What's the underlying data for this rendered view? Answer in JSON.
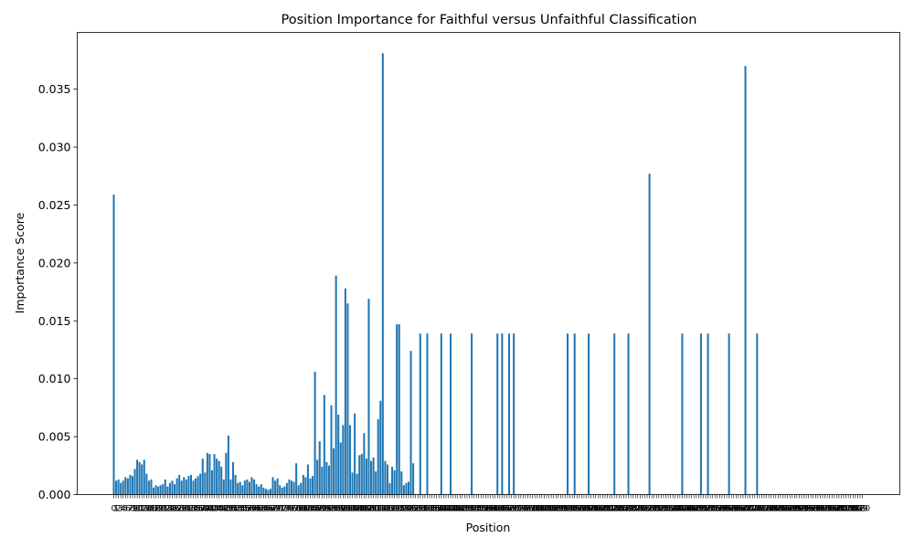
{
  "chart_data": {
    "type": "bar",
    "title": "Position Importance for Faithful versus Unfaithful Classification",
    "xlabel": "Position",
    "ylabel": "Importance Score",
    "ylim": [
      0,
      0.0399
    ],
    "yticks": [
      0.0,
      0.005,
      0.01,
      0.015,
      0.02,
      0.025,
      0.03,
      0.035
    ],
    "ytick_labels": [
      "0.000",
      "0.005",
      "0.010",
      "0.015",
      "0.020",
      "0.025",
      "0.030",
      "0.035"
    ],
    "x_range": [
      0,
      320
    ],
    "grid": false,
    "bar_color": "#1f77b4",
    "bars": [
      {
        "x": 0,
        "y": 0.0259
      },
      {
        "x": 1,
        "y": 0.0012
      },
      {
        "x": 2,
        "y": 0.0013
      },
      {
        "x": 3,
        "y": 0.001
      },
      {
        "x": 4,
        "y": 0.0012
      },
      {
        "x": 5,
        "y": 0.0015
      },
      {
        "x": 6,
        "y": 0.0014
      },
      {
        "x": 7,
        "y": 0.0017
      },
      {
        "x": 8,
        "y": 0.0016
      },
      {
        "x": 9,
        "y": 0.0022
      },
      {
        "x": 10,
        "y": 0.003
      },
      {
        "x": 11,
        "y": 0.0028
      },
      {
        "x": 12,
        "y": 0.0026
      },
      {
        "x": 13,
        "y": 0.003
      },
      {
        "x": 14,
        "y": 0.0018
      },
      {
        "x": 15,
        "y": 0.0012
      },
      {
        "x": 16,
        "y": 0.0013
      },
      {
        "x": 17,
        "y": 0.0006
      },
      {
        "x": 18,
        "y": 0.0008
      },
      {
        "x": 19,
        "y": 0.0007
      },
      {
        "x": 20,
        "y": 0.0008
      },
      {
        "x": 21,
        "y": 0.0009
      },
      {
        "x": 22,
        "y": 0.0013
      },
      {
        "x": 23,
        "y": 0.0007
      },
      {
        "x": 24,
        "y": 0.001
      },
      {
        "x": 25,
        "y": 0.0012
      },
      {
        "x": 26,
        "y": 0.0009
      },
      {
        "x": 27,
        "y": 0.0014
      },
      {
        "x": 28,
        "y": 0.0017
      },
      {
        "x": 29,
        "y": 0.0012
      },
      {
        "x": 30,
        "y": 0.0015
      },
      {
        "x": 31,
        "y": 0.0013
      },
      {
        "x": 32,
        "y": 0.0016
      },
      {
        "x": 33,
        "y": 0.0017
      },
      {
        "x": 34,
        "y": 0.0012
      },
      {
        "x": 35,
        "y": 0.0014
      },
      {
        "x": 36,
        "y": 0.0016
      },
      {
        "x": 37,
        "y": 0.0018
      },
      {
        "x": 38,
        "y": 0.0031
      },
      {
        "x": 39,
        "y": 0.0019
      },
      {
        "x": 40,
        "y": 0.0036
      },
      {
        "x": 41,
        "y": 0.0035
      },
      {
        "x": 42,
        "y": 0.0021
      },
      {
        "x": 43,
        "y": 0.0035
      },
      {
        "x": 44,
        "y": 0.0031
      },
      {
        "x": 45,
        "y": 0.0029
      },
      {
        "x": 46,
        "y": 0.0024
      },
      {
        "x": 47,
        "y": 0.0013
      },
      {
        "x": 48,
        "y": 0.0036
      },
      {
        "x": 49,
        "y": 0.0051
      },
      {
        "x": 50,
        "y": 0.0013
      },
      {
        "x": 51,
        "y": 0.0028
      },
      {
        "x": 52,
        "y": 0.0017
      },
      {
        "x": 53,
        "y": 0.001
      },
      {
        "x": 54,
        "y": 0.0011
      },
      {
        "x": 55,
        "y": 0.0008
      },
      {
        "x": 56,
        "y": 0.0012
      },
      {
        "x": 57,
        "y": 0.0013
      },
      {
        "x": 58,
        "y": 0.0011
      },
      {
        "x": 59,
        "y": 0.0015
      },
      {
        "x": 60,
        "y": 0.0013
      },
      {
        "x": 61,
        "y": 0.0009
      },
      {
        "x": 62,
        "y": 0.0007
      },
      {
        "x": 63,
        "y": 0.0009
      },
      {
        "x": 64,
        "y": 0.0006
      },
      {
        "x": 65,
        "y": 0.0005
      },
      {
        "x": 66,
        "y": 0.0004
      },
      {
        "x": 67,
        "y": 0.0005
      },
      {
        "x": 68,
        "y": 0.0015
      },
      {
        "x": 69,
        "y": 0.0012
      },
      {
        "x": 70,
        "y": 0.0014
      },
      {
        "x": 71,
        "y": 0.0008
      },
      {
        "x": 72,
        "y": 0.0006
      },
      {
        "x": 73,
        "y": 0.0007
      },
      {
        "x": 74,
        "y": 0.001
      },
      {
        "x": 75,
        "y": 0.0013
      },
      {
        "x": 76,
        "y": 0.0012
      },
      {
        "x": 77,
        "y": 0.0011
      },
      {
        "x": 78,
        "y": 0.0027
      },
      {
        "x": 79,
        "y": 0.0008
      },
      {
        "x": 80,
        "y": 0.001
      },
      {
        "x": 81,
        "y": 0.0017
      },
      {
        "x": 82,
        "y": 0.0015
      },
      {
        "x": 83,
        "y": 0.0026
      },
      {
        "x": 84,
        "y": 0.0014
      },
      {
        "x": 85,
        "y": 0.0016
      },
      {
        "x": 86,
        "y": 0.0106
      },
      {
        "x": 87,
        "y": 0.003
      },
      {
        "x": 88,
        "y": 0.0046
      },
      {
        "x": 89,
        "y": 0.0024
      },
      {
        "x": 90,
        "y": 0.0086
      },
      {
        "x": 91,
        "y": 0.0028
      },
      {
        "x": 92,
        "y": 0.0025
      },
      {
        "x": 93,
        "y": 0.0077
      },
      {
        "x": 94,
        "y": 0.004
      },
      {
        "x": 95,
        "y": 0.0189
      },
      {
        "x": 96,
        "y": 0.0069
      },
      {
        "x": 97,
        "y": 0.0045
      },
      {
        "x": 98,
        "y": 0.006
      },
      {
        "x": 99,
        "y": 0.0178
      },
      {
        "x": 100,
        "y": 0.0165
      },
      {
        "x": 101,
        "y": 0.006
      },
      {
        "x": 102,
        "y": 0.0019
      },
      {
        "x": 103,
        "y": 0.007
      },
      {
        "x": 104,
        "y": 0.0018
      },
      {
        "x": 105,
        "y": 0.0034
      },
      {
        "x": 106,
        "y": 0.0035
      },
      {
        "x": 107,
        "y": 0.0053
      },
      {
        "x": 108,
        "y": 0.0031
      },
      {
        "x": 109,
        "y": 0.0169
      },
      {
        "x": 110,
        "y": 0.0029
      },
      {
        "x": 111,
        "y": 0.0032
      },
      {
        "x": 112,
        "y": 0.002
      },
      {
        "x": 113,
        "y": 0.0065
      },
      {
        "x": 114,
        "y": 0.0081
      },
      {
        "x": 115,
        "y": 0.0381
      },
      {
        "x": 116,
        "y": 0.0029
      },
      {
        "x": 117,
        "y": 0.0026
      },
      {
        "x": 118,
        "y": 0.001
      },
      {
        "x": 119,
        "y": 0.0024
      },
      {
        "x": 120,
        "y": 0.0021
      },
      {
        "x": 121,
        "y": 0.0147
      },
      {
        "x": 122,
        "y": 0.0147
      },
      {
        "x": 123,
        "y": 0.002
      },
      {
        "x": 124,
        "y": 0.0008
      },
      {
        "x": 125,
        "y": 0.001
      },
      {
        "x": 126,
        "y": 0.0011
      },
      {
        "x": 127,
        "y": 0.0124
      },
      {
        "x": 128,
        "y": 0.0027
      },
      {
        "x": 131,
        "y": 0.0139
      },
      {
        "x": 134,
        "y": 0.0139
      },
      {
        "x": 140,
        "y": 0.0139
      },
      {
        "x": 144,
        "y": 0.0139
      },
      {
        "x": 153,
        "y": 0.0139
      },
      {
        "x": 164,
        "y": 0.0139
      },
      {
        "x": 166,
        "y": 0.0139
      },
      {
        "x": 169,
        "y": 0.0139
      },
      {
        "x": 171,
        "y": 0.0139
      },
      {
        "x": 194,
        "y": 0.0139
      },
      {
        "x": 197,
        "y": 0.0139
      },
      {
        "x": 203,
        "y": 0.0139
      },
      {
        "x": 214,
        "y": 0.0139
      },
      {
        "x": 220,
        "y": 0.0139
      },
      {
        "x": 229,
        "y": 0.0277
      },
      {
        "x": 243,
        "y": 0.0139
      },
      {
        "x": 251,
        "y": 0.0139
      },
      {
        "x": 254,
        "y": 0.0139
      },
      {
        "x": 263,
        "y": 0.0139
      },
      {
        "x": 270,
        "y": 0.037
      },
      {
        "x": 275,
        "y": 0.0139
      }
    ]
  }
}
